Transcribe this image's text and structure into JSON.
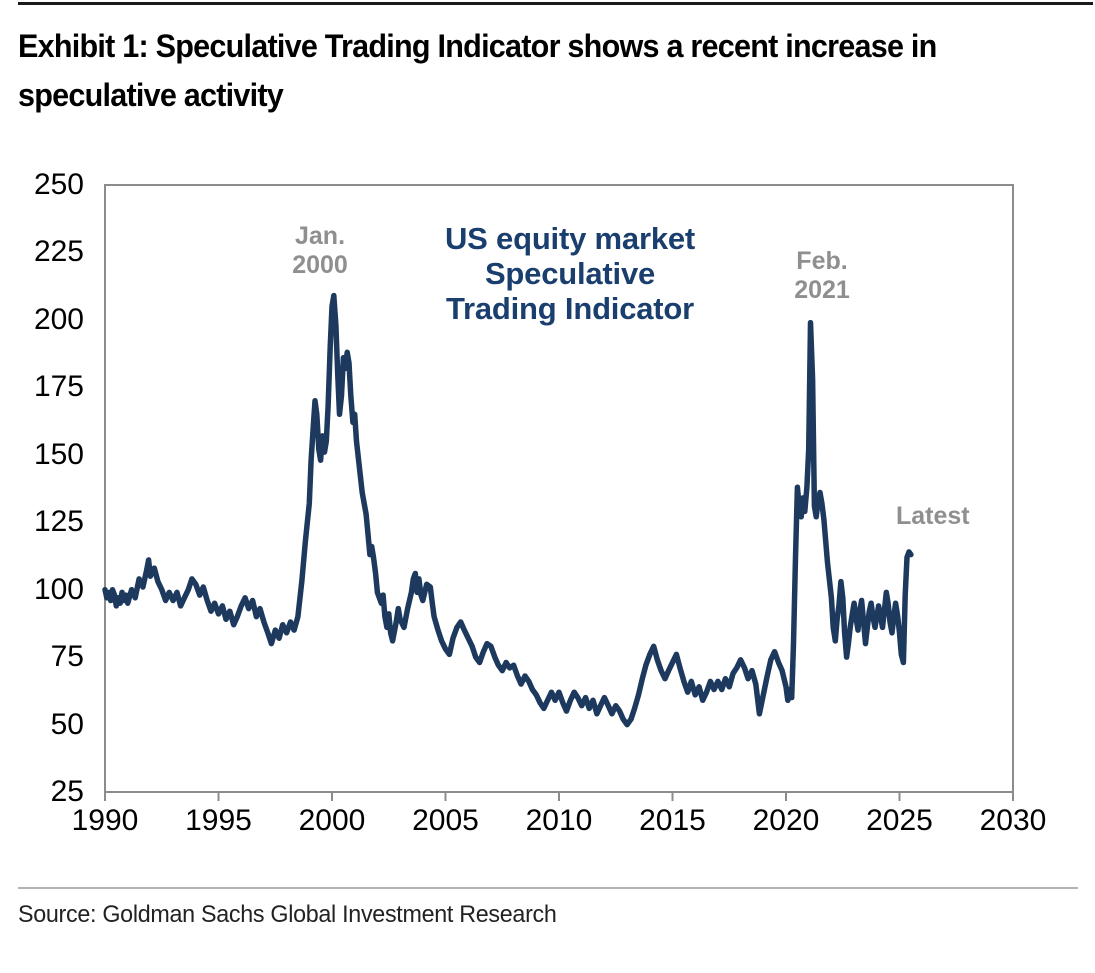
{
  "header": {
    "title_line1": "Exhibit 1: Speculative Trading Indicator shows a recent increase in",
    "title_line2": "speculative activity"
  },
  "footer": {
    "source": "Source: Goldman Sachs Global Investment Research"
  },
  "colors": {
    "line": "#1d3a5e",
    "chart_label_navy": "#1a3e6e",
    "annotation_gray": "#8f8f8f",
    "axis_gray": "#8c8c8c",
    "tick_label": "#000000",
    "title_black": "#000000"
  },
  "annotations": {
    "jan_2000": {
      "line1": "Jan.",
      "line2": "2000"
    },
    "feb_2021": {
      "line1": "Feb.",
      "line2": "2021"
    },
    "latest": {
      "label": "Latest"
    },
    "chart_label": {
      "line1": "US equity market",
      "line2": "Speculative",
      "line3": "Trading Indicator"
    }
  },
  "chart_data": {
    "type": "line",
    "title": "US equity market Speculative Trading Indicator",
    "xlabel": "",
    "ylabel": "",
    "xlim": [
      1990,
      2030
    ],
    "ylim": [
      25,
      250
    ],
    "grid": false,
    "legend": "none",
    "x_ticks": [
      1990,
      1995,
      2000,
      2005,
      2010,
      2015,
      2020,
      2025,
      2030
    ],
    "y_ticks": [
      250,
      225,
      200,
      175,
      150,
      125,
      100,
      75,
      50,
      25
    ],
    "annotations": [
      {
        "text": "Jan. 2000",
        "x": 1999.6,
        "y": 222,
        "color": "#8f8f8f"
      },
      {
        "text": "Feb. 2021",
        "x": 2021.6,
        "y": 214,
        "color": "#8f8f8f"
      },
      {
        "text": "Latest",
        "x": 2025.0,
        "y": 122,
        "color": "#8f8f8f"
      }
    ],
    "series": [
      {
        "name": "US equity market Speculative Trading Indicator",
        "color": "#1d3a5e",
        "points": [
          [
            1990.0,
            100
          ],
          [
            1990.08,
            97
          ],
          [
            1990.17,
            99
          ],
          [
            1990.25,
            96
          ],
          [
            1990.33,
            100
          ],
          [
            1990.42,
            98
          ],
          [
            1990.5,
            94
          ],
          [
            1990.58,
            97
          ],
          [
            1990.67,
            95
          ],
          [
            1990.75,
            99
          ],
          [
            1990.83,
            96
          ],
          [
            1990.92,
            98
          ],
          [
            1991.0,
            95
          ],
          [
            1991.17,
            100
          ],
          [
            1991.33,
            97
          ],
          [
            1991.5,
            104
          ],
          [
            1991.67,
            101
          ],
          [
            1991.83,
            107
          ],
          [
            1991.92,
            111
          ],
          [
            1992.0,
            105
          ],
          [
            1992.17,
            108
          ],
          [
            1992.33,
            103
          ],
          [
            1992.5,
            100
          ],
          [
            1992.67,
            96
          ],
          [
            1992.83,
            99
          ],
          [
            1993.0,
            96
          ],
          [
            1993.17,
            99
          ],
          [
            1993.33,
            94
          ],
          [
            1993.5,
            97
          ],
          [
            1993.67,
            100
          ],
          [
            1993.83,
            104
          ],
          [
            1994.0,
            102
          ],
          [
            1994.17,
            98
          ],
          [
            1994.33,
            101
          ],
          [
            1994.5,
            96
          ],
          [
            1994.67,
            92
          ],
          [
            1994.83,
            95
          ],
          [
            1995.0,
            91
          ],
          [
            1995.17,
            94
          ],
          [
            1995.33,
            89
          ],
          [
            1995.5,
            92
          ],
          [
            1995.67,
            87
          ],
          [
            1995.83,
            90
          ],
          [
            1996.0,
            94
          ],
          [
            1996.17,
            97
          ],
          [
            1996.33,
            93
          ],
          [
            1996.5,
            96
          ],
          [
            1996.67,
            90
          ],
          [
            1996.83,
            93
          ],
          [
            1997.0,
            88
          ],
          [
            1997.17,
            84
          ],
          [
            1997.33,
            80
          ],
          [
            1997.5,
            85
          ],
          [
            1997.67,
            82
          ],
          [
            1997.83,
            87
          ],
          [
            1998.0,
            84
          ],
          [
            1998.17,
            88
          ],
          [
            1998.33,
            85
          ],
          [
            1998.5,
            90
          ],
          [
            1998.67,
            103
          ],
          [
            1998.83,
            118
          ],
          [
            1999.0,
            132
          ],
          [
            1999.08,
            148
          ],
          [
            1999.17,
            160
          ],
          [
            1999.25,
            170
          ],
          [
            1999.33,
            165
          ],
          [
            1999.42,
            152
          ],
          [
            1999.5,
            148
          ],
          [
            1999.58,
            157
          ],
          [
            1999.67,
            151
          ],
          [
            1999.75,
            155
          ],
          [
            1999.83,
            168
          ],
          [
            1999.92,
            190
          ],
          [
            2000.0,
            205
          ],
          [
            2000.08,
            209
          ],
          [
            2000.17,
            198
          ],
          [
            2000.25,
            180
          ],
          [
            2000.33,
            165
          ],
          [
            2000.42,
            172
          ],
          [
            2000.5,
            186
          ],
          [
            2000.58,
            182
          ],
          [
            2000.67,
            188
          ],
          [
            2000.75,
            184
          ],
          [
            2000.83,
            172
          ],
          [
            2000.92,
            162
          ],
          [
            2001.0,
            165
          ],
          [
            2001.08,
            155
          ],
          [
            2001.17,
            148
          ],
          [
            2001.25,
            142
          ],
          [
            2001.33,
            136
          ],
          [
            2001.5,
            128
          ],
          [
            2001.58,
            121
          ],
          [
            2001.67,
            113
          ],
          [
            2001.75,
            116
          ],
          [
            2001.83,
            112
          ],
          [
            2001.92,
            106
          ],
          [
            2002.0,
            99
          ],
          [
            2002.17,
            95
          ],
          [
            2002.25,
            98
          ],
          [
            2002.33,
            90
          ],
          [
            2002.42,
            86
          ],
          [
            2002.5,
            91
          ],
          [
            2002.58,
            84
          ],
          [
            2002.67,
            81
          ],
          [
            2002.83,
            88
          ],
          [
            2002.92,
            93
          ],
          [
            2003.0,
            89
          ],
          [
            2003.17,
            86
          ],
          [
            2003.33,
            93
          ],
          [
            2003.5,
            99
          ],
          [
            2003.58,
            104
          ],
          [
            2003.67,
            106
          ],
          [
            2003.75,
            99
          ],
          [
            2003.83,
            104
          ],
          [
            2003.92,
            98
          ],
          [
            2004.0,
            96
          ],
          [
            2004.17,
            102
          ],
          [
            2004.33,
            101
          ],
          [
            2004.42,
            95
          ],
          [
            2004.5,
            90
          ],
          [
            2004.67,
            85
          ],
          [
            2004.83,
            81
          ],
          [
            2005.0,
            78
          ],
          [
            2005.17,
            76
          ],
          [
            2005.33,
            82
          ],
          [
            2005.5,
            86
          ],
          [
            2005.67,
            88
          ],
          [
            2005.83,
            85
          ],
          [
            2006.0,
            82
          ],
          [
            2006.17,
            79
          ],
          [
            2006.33,
            75
          ],
          [
            2006.5,
            73
          ],
          [
            2006.67,
            77
          ],
          [
            2006.83,
            80
          ],
          [
            2007.0,
            79
          ],
          [
            2007.17,
            75
          ],
          [
            2007.33,
            72
          ],
          [
            2007.5,
            70
          ],
          [
            2007.67,
            73
          ],
          [
            2007.83,
            71
          ],
          [
            2008.0,
            72
          ],
          [
            2008.17,
            68
          ],
          [
            2008.33,
            65
          ],
          [
            2008.5,
            68
          ],
          [
            2008.67,
            66
          ],
          [
            2008.83,
            63
          ],
          [
            2009.0,
            61
          ],
          [
            2009.17,
            58
          ],
          [
            2009.33,
            56
          ],
          [
            2009.5,
            59
          ],
          [
            2009.67,
            62
          ],
          [
            2009.83,
            59
          ],
          [
            2010.0,
            62
          ],
          [
            2010.17,
            58
          ],
          [
            2010.33,
            55
          ],
          [
            2010.5,
            59
          ],
          [
            2010.67,
            62
          ],
          [
            2010.83,
            60
          ],
          [
            2011.0,
            57
          ],
          [
            2011.17,
            60
          ],
          [
            2011.33,
            56
          ],
          [
            2011.5,
            59
          ],
          [
            2011.67,
            54
          ],
          [
            2011.83,
            57
          ],
          [
            2012.0,
            60
          ],
          [
            2012.17,
            57
          ],
          [
            2012.33,
            54
          ],
          [
            2012.5,
            57
          ],
          [
            2012.67,
            55
          ],
          [
            2012.83,
            52
          ],
          [
            2013.0,
            50
          ],
          [
            2013.17,
            52
          ],
          [
            2013.33,
            56
          ],
          [
            2013.5,
            61
          ],
          [
            2013.67,
            67
          ],
          [
            2013.83,
            72
          ],
          [
            2014.0,
            76
          ],
          [
            2014.17,
            79
          ],
          [
            2014.33,
            74
          ],
          [
            2014.5,
            70
          ],
          [
            2014.67,
            67
          ],
          [
            2014.83,
            70
          ],
          [
            2015.0,
            73
          ],
          [
            2015.17,
            76
          ],
          [
            2015.33,
            71
          ],
          [
            2015.5,
            66
          ],
          [
            2015.67,
            62
          ],
          [
            2015.83,
            66
          ],
          [
            2016.0,
            61
          ],
          [
            2016.17,
            64
          ],
          [
            2016.33,
            59
          ],
          [
            2016.5,
            62
          ],
          [
            2016.67,
            66
          ],
          [
            2016.83,
            63
          ],
          [
            2017.0,
            66
          ],
          [
            2017.17,
            63
          ],
          [
            2017.33,
            67
          ],
          [
            2017.5,
            64
          ],
          [
            2017.67,
            69
          ],
          [
            2017.83,
            71
          ],
          [
            2018.0,
            74
          ],
          [
            2018.17,
            71
          ],
          [
            2018.33,
            67
          ],
          [
            2018.5,
            70
          ],
          [
            2018.67,
            65
          ],
          [
            2018.83,
            54
          ],
          [
            2019.0,
            61
          ],
          [
            2019.17,
            68
          ],
          [
            2019.33,
            74
          ],
          [
            2019.5,
            77
          ],
          [
            2019.67,
            73
          ],
          [
            2019.83,
            70
          ],
          [
            2020.0,
            64
          ],
          [
            2020.08,
            59
          ],
          [
            2020.17,
            63
          ],
          [
            2020.25,
            60
          ],
          [
            2020.33,
            80
          ],
          [
            2020.42,
            112
          ],
          [
            2020.5,
            138
          ],
          [
            2020.58,
            131
          ],
          [
            2020.67,
            127
          ],
          [
            2020.75,
            134
          ],
          [
            2020.83,
            129
          ],
          [
            2020.92,
            138
          ],
          [
            2021.0,
            152
          ],
          [
            2021.08,
            199
          ],
          [
            2021.17,
            178
          ],
          [
            2021.25,
            131
          ],
          [
            2021.33,
            127
          ],
          [
            2021.42,
            133
          ],
          [
            2021.5,
            136
          ],
          [
            2021.58,
            132
          ],
          [
            2021.67,
            126
          ],
          [
            2021.75,
            118
          ],
          [
            2021.83,
            110
          ],
          [
            2021.92,
            103
          ],
          [
            2022.0,
            97
          ],
          [
            2022.08,
            86
          ],
          [
            2022.17,
            81
          ],
          [
            2022.25,
            89
          ],
          [
            2022.33,
            94
          ],
          [
            2022.42,
            103
          ],
          [
            2022.5,
            97
          ],
          [
            2022.58,
            84
          ],
          [
            2022.67,
            75
          ],
          [
            2022.75,
            80
          ],
          [
            2022.83,
            86
          ],
          [
            2022.92,
            91
          ],
          [
            2023.0,
            95
          ],
          [
            2023.08,
            90
          ],
          [
            2023.17,
            85
          ],
          [
            2023.25,
            92
          ],
          [
            2023.33,
            96
          ],
          [
            2023.42,
            88
          ],
          [
            2023.5,
            80
          ],
          [
            2023.58,
            86
          ],
          [
            2023.67,
            92
          ],
          [
            2023.75,
            95
          ],
          [
            2023.83,
            90
          ],
          [
            2023.92,
            86
          ],
          [
            2024.0,
            90
          ],
          [
            2024.08,
            94
          ],
          [
            2024.17,
            90
          ],
          [
            2024.25,
            86
          ],
          [
            2024.33,
            92
          ],
          [
            2024.42,
            99
          ],
          [
            2024.5,
            95
          ],
          [
            2024.58,
            88
          ],
          [
            2024.67,
            84
          ],
          [
            2024.75,
            90
          ],
          [
            2024.83,
            95
          ],
          [
            2024.92,
            90
          ],
          [
            2025.0,
            84
          ],
          [
            2025.08,
            76
          ],
          [
            2025.17,
            73
          ],
          [
            2025.25,
            98
          ],
          [
            2025.33,
            112
          ],
          [
            2025.42,
            114
          ],
          [
            2025.5,
            113
          ]
        ]
      }
    ]
  }
}
